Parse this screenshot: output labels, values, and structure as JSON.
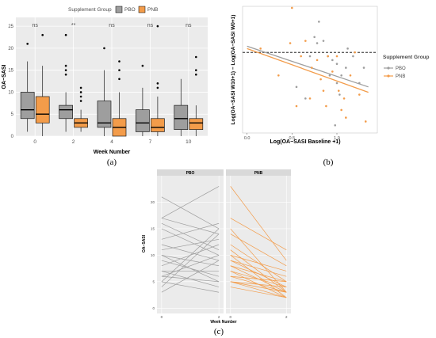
{
  "colors": {
    "pbo": "#9e9e9e",
    "pnb": "#f39c4a",
    "panel_a": "#ebebeb",
    "panel_b": "#ffffff",
    "grid": "#ffffff",
    "strip": "#d9d9d9"
  },
  "chart_data": [
    {
      "id": "a",
      "type": "box",
      "caption": "(a)",
      "legend_title": "Supplement Group",
      "legend_placement": "top",
      "xlabel": "Week Number",
      "ylabel": "OA−SASI",
      "ylim": [
        0,
        27
      ],
      "yticks": [
        "0",
        "5",
        "10",
        "15",
        "20",
        "25"
      ],
      "categories": [
        "0",
        "2",
        "4",
        "7",
        "10"
      ],
      "significance": [
        "ns",
        "**",
        "ns",
        "ns",
        "ns"
      ],
      "series": [
        {
          "name": "PBO",
          "boxes": [
            {
              "min": 1,
              "q1": 4,
              "median": 6,
              "q3": 10,
              "max": 17,
              "outliers": [
                21
              ]
            },
            {
              "min": 1,
              "q1": 4,
              "median": 6,
              "q3": 7,
              "max": 10,
              "outliers": [
                14,
                15,
                16,
                23
              ]
            },
            {
              "min": 0,
              "q1": 2,
              "median": 3,
              "q3": 8,
              "max": 15,
              "outliers": [
                20
              ]
            },
            {
              "min": 0,
              "q1": 1,
              "median": 3,
              "q3": 6,
              "max": 11,
              "outliers": [
                16
              ]
            },
            {
              "min": 0,
              "q1": 1.5,
              "median": 4,
              "q3": 7,
              "max": 13,
              "outliers": []
            }
          ]
        },
        {
          "name": "PNB",
          "boxes": [
            {
              "min": 0,
              "q1": 3,
              "median": 5,
              "q3": 9,
              "max": 16,
              "outliers": [
                23
              ]
            },
            {
              "min": 1,
              "q1": 2,
              "median": 3,
              "q3": 4,
              "max": 6,
              "outliers": [
                8,
                9,
                10,
                11
              ]
            },
            {
              "min": 0,
              "q1": 0,
              "median": 2,
              "q3": 4,
              "max": 10,
              "outliers": [
                13,
                15,
                17
              ]
            },
            {
              "min": 0,
              "q1": 1,
              "median": 2,
              "q3": 4,
              "max": 9,
              "outliers": [
                11,
                12,
                25
              ]
            },
            {
              "min": 0,
              "q1": 1.5,
              "median": 3,
              "q3": 4,
              "max": 7,
              "outliers": [
                14,
                15,
                18
              ]
            }
          ]
        }
      ]
    },
    {
      "id": "b",
      "type": "scatter",
      "caption": "(b)",
      "legend_title": "Supplement Group",
      "legend_placement": "right",
      "xlabel": "Log(OA−SASI Baseline +1)",
      "ylabel": "Log(OA−SASI W10+1) − Log(OA−SASI W0+1)",
      "xlim": [
        -0.05,
        1.45
      ],
      "ylim": [
        -1.05,
        0.6
      ],
      "xticks": [
        0.0,
        0.5,
        1.0
      ],
      "xtick_labels": [
        "0.0",
        "0.5",
        "1.0"
      ],
      "reference_line_y": 0,
      "series": [
        {
          "name": "PBO",
          "points": [
            [
              0.75,
              0.2
            ],
            [
              0.78,
              0.12
            ],
            [
              0.8,
              0.4
            ],
            [
              0.85,
              0.15
            ],
            [
              0.9,
              -0.05
            ],
            [
              0.92,
              -0.3
            ],
            [
              0.95,
              -0.1
            ],
            [
              1.0,
              -0.15
            ],
            [
              1.0,
              -0.4
            ],
            [
              1.03,
              -0.55
            ],
            [
              1.05,
              -0.3
            ],
            [
              1.1,
              -0.2
            ],
            [
              1.12,
              0.05
            ],
            [
              1.18,
              -0.05
            ],
            [
              1.25,
              -0.4
            ],
            [
              1.3,
              -0.2
            ],
            [
              0.65,
              -0.6
            ],
            [
              0.55,
              -0.45
            ],
            [
              0.7,
              -0.05
            ],
            [
              0.98,
              -0.95
            ]
          ],
          "fit": [
            [
              0.0,
              0.08
            ],
            [
              1.35,
              -0.45
            ]
          ]
        },
        {
          "name": "PNB",
          "points": [
            [
              0.5,
              0.58
            ],
            [
              0.15,
              0.05
            ],
            [
              0.35,
              -0.3
            ],
            [
              0.48,
              0.12
            ],
            [
              0.6,
              -0.05
            ],
            [
              0.65,
              0.15
            ],
            [
              0.72,
              -0.2
            ],
            [
              0.78,
              -0.1
            ],
            [
              0.82,
              -0.35
            ],
            [
              0.85,
              -0.5
            ],
            [
              0.88,
              -0.7
            ],
            [
              0.95,
              -0.25
            ],
            [
              1.02,
              -0.5
            ],
            [
              1.05,
              -0.75
            ],
            [
              1.08,
              -0.6
            ],
            [
              1.1,
              -0.85
            ],
            [
              1.15,
              -0.3
            ],
            [
              1.2,
              0.0
            ],
            [
              1.25,
              -0.55
            ],
            [
              1.32,
              -0.9
            ],
            [
              0.55,
              -0.7
            ],
            [
              0.7,
              -0.6
            ],
            [
              0.9,
              -0.05
            ],
            [
              1.0,
              -0.05
            ]
          ],
          "fit": [
            [
              0.0,
              0.05
            ],
            [
              1.35,
              -0.52
            ]
          ]
        }
      ]
    },
    {
      "id": "c",
      "type": "line",
      "caption": "(c)",
      "xlabel": "Week Number",
      "ylabel": "OA−SASI",
      "ylim": [
        -1,
        25
      ],
      "yticks": [
        "0",
        "5",
        "10",
        "15",
        "20"
      ],
      "xticks": [
        "0",
        "2"
      ],
      "panels": [
        {
          "name": "PBO",
          "pairs": [
            [
              21,
              15
            ],
            [
              17,
              14
            ],
            [
              16,
              11
            ],
            [
              15,
              10
            ],
            [
              13,
              16
            ],
            [
              12,
              9
            ],
            [
              11,
              13
            ],
            [
              10,
              8
            ],
            [
              10,
              5
            ],
            [
              9,
              6
            ],
            [
              8,
              12
            ],
            [
              7,
              7
            ],
            [
              7,
              4
            ],
            [
              6,
              10
            ],
            [
              6,
              5
            ],
            [
              5,
              15
            ],
            [
              5,
              3
            ],
            [
              4,
              14
            ],
            [
              17,
              23
            ],
            [
              3,
              9
            ]
          ]
        },
        {
          "name": "PNB",
          "pairs": [
            [
              23,
              9
            ],
            [
              17,
              11
            ],
            [
              15,
              3
            ],
            [
              14,
              8
            ],
            [
              11,
              3
            ],
            [
              10,
              2
            ],
            [
              10,
              7
            ],
            [
              9,
              4
            ],
            [
              9,
              6
            ],
            [
              8,
              3
            ],
            [
              8,
              5
            ],
            [
              7,
              2
            ],
            [
              7,
              4
            ],
            [
              6,
              3
            ],
            [
              6,
              5
            ],
            [
              5,
              2
            ],
            [
              5,
              3
            ],
            [
              5,
              4
            ],
            [
              4,
              2
            ],
            [
              12,
              5
            ]
          ]
        }
      ]
    }
  ]
}
